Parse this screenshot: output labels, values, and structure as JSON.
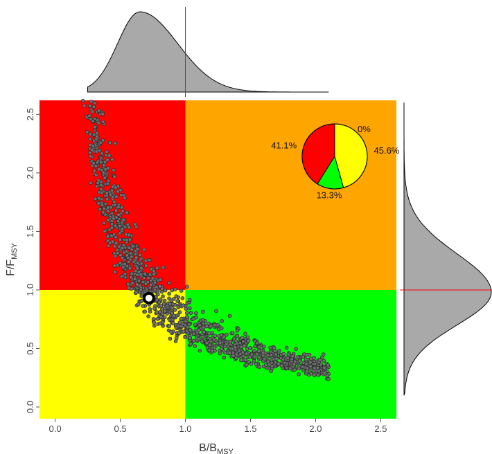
{
  "chart_data": {
    "type": "scatter",
    "title": "",
    "x_axis": {
      "label_main": "B/B",
      "label_sub": "MSY",
      "ticks": [
        "0.0",
        "0.5",
        "1.0",
        "1.5",
        "2.0",
        "2.5"
      ],
      "range": [
        -0.12,
        2.62
      ]
    },
    "y_axis": {
      "label_main": "F/F",
      "label_sub": "MSY",
      "ticks": [
        "0.0",
        "0.5",
        "1.0",
        "1.5",
        "2.0",
        "2.5"
      ],
      "range": [
        -0.1,
        2.62
      ]
    },
    "quadrants": [
      {
        "region": "B<1, F>1",
        "color": "#ff0000"
      },
      {
        "region": "B>1, F>1",
        "color": "#ffa500"
      },
      {
        "region": "B<1, F<1",
        "color": "#ffff00"
      },
      {
        "region": "B>1, F<1",
        "color": "#00ff00"
      }
    ],
    "reference_lines": {
      "x": 1.0,
      "y": 1.0,
      "color": "#ff0000"
    },
    "point_estimate": {
      "x": 0.72,
      "y": 0.93
    },
    "scatter_band": {
      "description": "Monte Carlo samples along curved band",
      "x_range": [
        0.19,
        2.1
      ],
      "color": "#707070"
    },
    "pie": {
      "slices": [
        {
          "label": "41.1%",
          "value": 41.1,
          "color": "#ff0000"
        },
        {
          "label": "0%",
          "value": 0.0,
          "color": "#ffa500"
        },
        {
          "label": "13.3%",
          "value": 13.3,
          "color": "#00ff00"
        },
        {
          "label": "45.6%",
          "value": 45.6,
          "color": "#ffff00"
        }
      ]
    },
    "marginal_top": {
      "mode": 0.65,
      "fill": "#a9a9a9"
    },
    "marginal_right": {
      "mode": 0.98,
      "fill": "#a9a9a9"
    }
  }
}
